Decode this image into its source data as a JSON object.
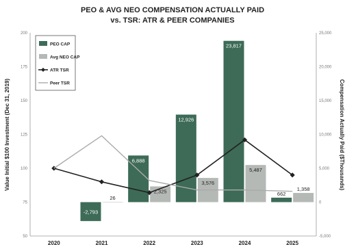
{
  "chart_data": {
    "type": "bar",
    "title": "PEO & AVG NEO COMPENSATION ACTUALLY PAID",
    "subtitle": "vs. TSR: ATR & PEER COMPANIES",
    "categories": [
      "2020",
      "2021",
      "2022",
      "2023",
      "2024",
      "2025"
    ],
    "y_left": {
      "label": "Value Initial $100 Investment (Dec 31, 2019)",
      "range": [
        50,
        200
      ],
      "ticks": [
        "50",
        "75",
        "100",
        "125",
        "150",
        "175",
        "200"
      ]
    },
    "y_right": {
      "label": "Compensation Actually Paid ($Thousands)",
      "range": [
        -5000,
        25000
      ],
      "ticks": [
        "-5,000",
        "0",
        "5,000",
        "10,000",
        "15,000",
        "20,000",
        "25,000"
      ]
    },
    "series": [
      {
        "name": "PEO CAP",
        "kind": "bar",
        "axis": "right",
        "color": "#3d6b57",
        "values": [
          null,
          -2793,
          6888,
          12926,
          23817,
          662
        ],
        "labels": [
          null,
          "-2,793",
          "6,888",
          "12,926",
          "23,817",
          "662"
        ]
      },
      {
        "name": "Avg NEO CAP",
        "kind": "bar",
        "axis": "right",
        "color": "#b5b9b6",
        "values": [
          null,
          26,
          2325,
          3576,
          5487,
          1358
        ],
        "labels": [
          null,
          "26",
          "2,325",
          "3,576",
          "5,487",
          "1,358"
        ]
      },
      {
        "name": "ATR TSR",
        "kind": "line",
        "axis": "left",
        "color": "#222222",
        "marker": "diamond",
        "values": [
          100,
          90,
          82,
          95,
          121,
          95
        ]
      },
      {
        "name": "Peer TSR",
        "kind": "line",
        "axis": "left",
        "color": "#aaaaaa",
        "values": [
          100,
          124,
          91,
          84,
          84,
          83
        ]
      }
    ],
    "legend": "top-left",
    "grid": false
  }
}
